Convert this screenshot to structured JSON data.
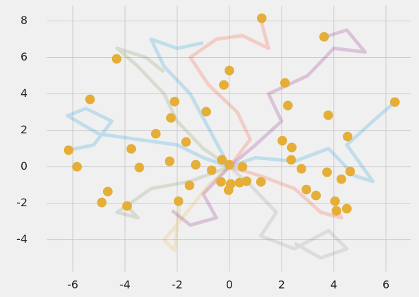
{
  "chart_data": {
    "type": "line",
    "xlim": [
      -7,
      6.95
    ],
    "ylim": [
      -5.75,
      8.85
    ],
    "xticks": [
      -6,
      -4,
      -2,
      0,
      2,
      4,
      6
    ],
    "yticks": [
      -4,
      -2,
      0,
      2,
      4,
      6,
      8
    ],
    "grid": true,
    "grid_color": "#cbcbcb",
    "background": "#f0f0f0",
    "series": [
      {
        "type": "line",
        "color": "#30a2da",
        "alpha": 0.25,
        "x": [
          0,
          -1,
          -2,
          -3.5,
          -5,
          -6.2,
          -5.5,
          -4.5,
          -5.2,
          -6.2
        ],
        "y": [
          0,
          0.5,
          1.2,
          1.5,
          1.8,
          2.8,
          3.2,
          2.5,
          1.2,
          0.9
        ]
      },
      {
        "type": "line",
        "color": "#fc4f30",
        "alpha": 0.22,
        "x": [
          0,
          0.8,
          0.3,
          -0.8,
          -1.5,
          -0.5,
          0.5,
          1.5,
          1.2
        ],
        "y": [
          0,
          1.5,
          3,
          4.5,
          6,
          7,
          7.2,
          6.5,
          8.1
        ]
      },
      {
        "type": "line",
        "color": "#810f7c",
        "alpha": 0.2,
        "x": [
          0,
          1,
          2,
          1.5,
          3,
          4,
          5.2,
          4.5,
          3.6
        ],
        "y": [
          0,
          1.2,
          2.5,
          4,
          5,
          6.5,
          6.3,
          7.5,
          7.1
        ]
      },
      {
        "type": "line",
        "color": "#8b8b8b",
        "alpha": 0.2,
        "x": [
          0,
          0.8,
          1.8,
          1.2,
          2.5,
          3.8,
          4.5,
          3.5,
          2.5
        ],
        "y": [
          0,
          -1,
          -2.5,
          -3.8,
          -4.5,
          -3.5,
          -4.5,
          -5,
          -4.2
        ]
      },
      {
        "type": "line",
        "color": "#6d904f",
        "alpha": 0.2,
        "x": [
          0,
          -1,
          -2,
          -2.5,
          -3.5,
          -4.3,
          -3.2,
          -2.5
        ],
        "y": [
          0,
          1,
          2.5,
          4,
          5.5,
          6.5,
          6,
          5.2
        ]
      },
      {
        "type": "line",
        "color": "#30a2da",
        "alpha": 0.25,
        "x": [
          0,
          1,
          2.5,
          3.8,
          4.8,
          5.5,
          4.5,
          5.5,
          6.3
        ],
        "y": [
          0,
          0.5,
          0.3,
          1,
          -0.5,
          -0.8,
          1.2,
          2.5,
          3.5
        ]
      },
      {
        "type": "line",
        "color": "#e5ae38",
        "alpha": 0.2,
        "x": [
          0,
          -0.8,
          -1.8,
          -2.5,
          -2.1,
          -1.9
        ],
        "y": [
          0,
          -1,
          -2.8,
          -4,
          -4.6,
          -1.9
        ]
      },
      {
        "type": "line",
        "color": "#fc4f30",
        "alpha": 0.22,
        "x": [
          0,
          1.2,
          2.5,
          3.5,
          4.3,
          4.1
        ],
        "y": [
          0,
          -0.5,
          -1.2,
          -2.5,
          -2.8,
          -2.4
        ]
      },
      {
        "type": "line",
        "color": "#6d904f",
        "alpha": 0.2,
        "x": [
          0,
          -1.5,
          -3,
          -4.3,
          -3.5,
          -3.9
        ],
        "y": [
          0,
          -0.8,
          -1.2,
          -2.5,
          -2.8,
          -2.2
        ]
      },
      {
        "type": "line",
        "color": "#810f7c",
        "alpha": 0.2,
        "x": [
          0,
          -1,
          -0.5,
          -1.5,
          -2.2
        ],
        "y": [
          0,
          -1.5,
          -2.8,
          -3.2,
          -2.4
        ]
      },
      {
        "type": "line",
        "color": "#30a2da",
        "alpha": 0.25,
        "x": [
          0,
          -1.5,
          -2.5,
          -3,
          -2,
          -1
        ],
        "y": [
          0,
          4,
          5.5,
          7,
          6.5,
          6.8
        ]
      },
      {
        "type": "scatter",
        "color": "#e5ae38",
        "alpha": 1,
        "x": [
          1.24,
          3.63,
          -4.32,
          0,
          -0.21,
          2.13,
          -5.34,
          -2.1,
          6.34,
          2.24,
          -0.89,
          3.79,
          -2.24,
          -2.82,
          4.53,
          -1.66,
          2.03,
          -6.16,
          -3.76,
          2.39,
          -2.29,
          2.37,
          -0.29,
          0,
          -1.29,
          -5.84,
          -3.45,
          0.5,
          2.76,
          -0.68,
          3.74,
          4.63,
          4.29,
          1.21,
          0.66,
          0.39,
          -0.32,
          0.05,
          -1.53,
          2.95,
          -4.66,
          -0.03,
          3.32,
          -4.89,
          -1.95,
          4.05,
          -3.92,
          4.5,
          4.1
        ],
        "y": [
          8.15,
          7.13,
          5.92,
          5.28,
          4.49,
          4.6,
          3.7,
          3.58,
          3.55,
          3.36,
          3.02,
          2.83,
          2.68,
          1.81,
          1.66,
          1.36,
          1.43,
          0.91,
          0.98,
          1.06,
          0.3,
          0.38,
          0.38,
          0.11,
          0.11,
          0,
          -0.04,
          0,
          -0.11,
          -0.19,
          -0.3,
          -0.26,
          -0.68,
          -0.83,
          -0.79,
          -0.87,
          -0.83,
          -0.94,
          -1.02,
          -1.25,
          -1.36,
          -1.28,
          -1.58,
          -1.96,
          -1.89,
          -1.89,
          -2.15,
          -2.3,
          -2.42
        ]
      }
    ]
  }
}
